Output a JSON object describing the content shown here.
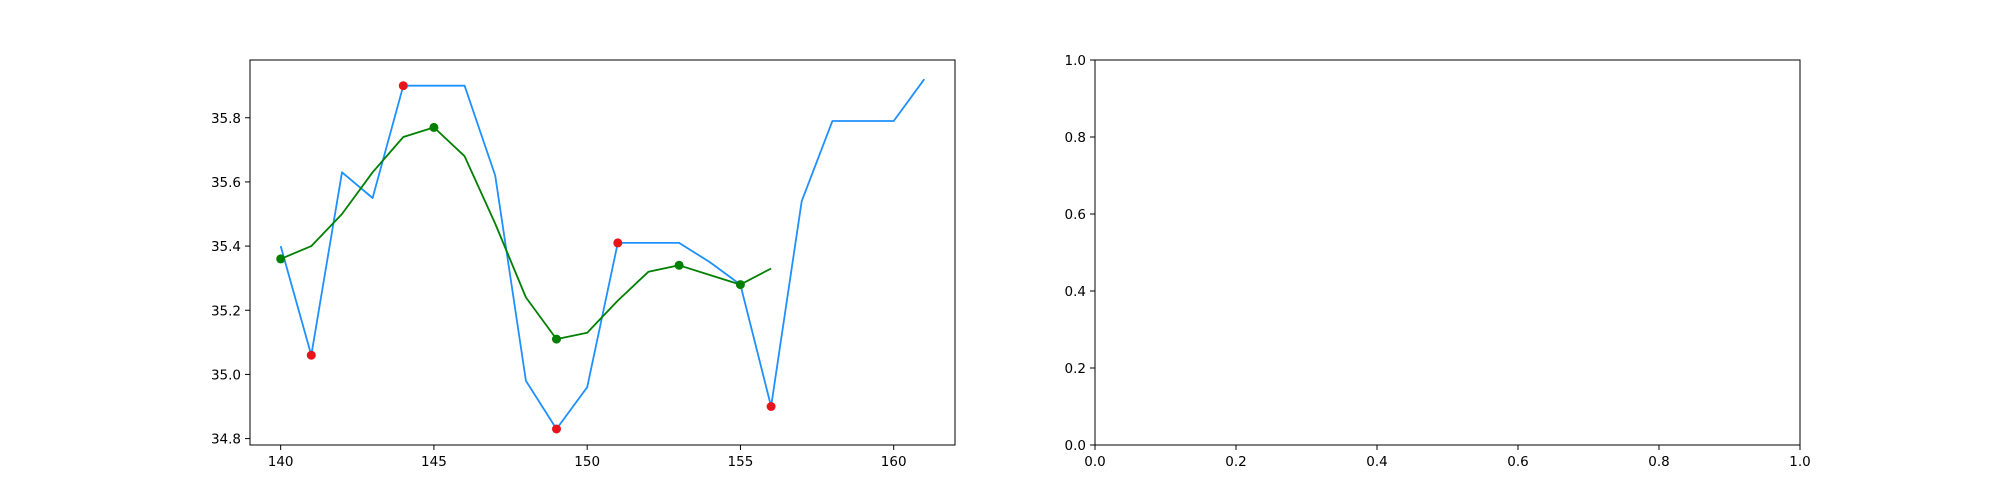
{
  "chart_data": [
    {
      "type": "line",
      "title": "",
      "xlabel": "",
      "ylabel": "",
      "xlim": [
        139,
        162
      ],
      "ylim": [
        34.78,
        35.98
      ],
      "grid": false,
      "x_ticks": [
        140,
        145,
        150,
        155,
        160
      ],
      "y_ticks": [
        34.8,
        35.0,
        35.2,
        35.4,
        35.6,
        35.8
      ],
      "y_tick_labels": [
        "34.8",
        "35.0",
        "35.2",
        "35.4",
        "35.6",
        "35.8"
      ],
      "series": [
        {
          "style": "line",
          "color": "#1e90ff",
          "x": [
            140,
            141,
            142,
            143,
            144,
            145,
            146,
            147,
            148,
            149,
            150,
            151,
            152,
            153,
            154,
            155,
            156,
            157,
            158,
            159,
            160,
            161
          ],
          "y": [
            35.4,
            35.06,
            35.63,
            35.55,
            35.9,
            35.9,
            35.9,
            35.62,
            34.98,
            34.83,
            34.96,
            35.41,
            35.41,
            35.41,
            35.35,
            35.28,
            34.9,
            35.54,
            35.79,
            35.79,
            35.79,
            35.92
          ]
        },
        {
          "style": "line",
          "color": "#008000",
          "x": [
            140,
            141,
            142,
            143,
            144,
            145,
            146,
            147,
            148,
            149,
            150,
            151,
            152,
            153,
            154,
            155,
            156
          ],
          "y": [
            35.36,
            35.4,
            35.5,
            35.63,
            35.74,
            35.77,
            35.68,
            35.47,
            35.24,
            35.11,
            35.13,
            35.23,
            35.32,
            35.34,
            35.31,
            35.28,
            35.33
          ]
        },
        {
          "style": "scatter",
          "color": "#e8141c",
          "x": [
            141,
            144,
            149,
            151,
            156
          ],
          "y": [
            35.06,
            35.9,
            34.83,
            35.41,
            34.9
          ]
        },
        {
          "style": "scatter",
          "color": "#008000",
          "x": [
            140,
            145,
            149,
            153,
            155
          ],
          "y": [
            35.36,
            35.77,
            35.11,
            35.34,
            35.28
          ]
        }
      ]
    },
    {
      "type": "line",
      "title": "",
      "xlabel": "",
      "ylabel": "",
      "xlim": [
        0,
        1
      ],
      "ylim": [
        0,
        1
      ],
      "grid": false,
      "x_ticks": [
        0,
        0.2,
        0.4,
        0.6,
        0.8,
        1.0
      ],
      "x_tick_labels": [
        "0.0",
        "0.2",
        "0.4",
        "0.6",
        "0.8",
        "1.0"
      ],
      "y_ticks": [
        0,
        0.2,
        0.4,
        0.6,
        0.8,
        1.0
      ],
      "y_tick_labels": [
        "0.0",
        "0.2",
        "0.4",
        "0.6",
        "0.8",
        "1.0"
      ],
      "series": []
    }
  ]
}
